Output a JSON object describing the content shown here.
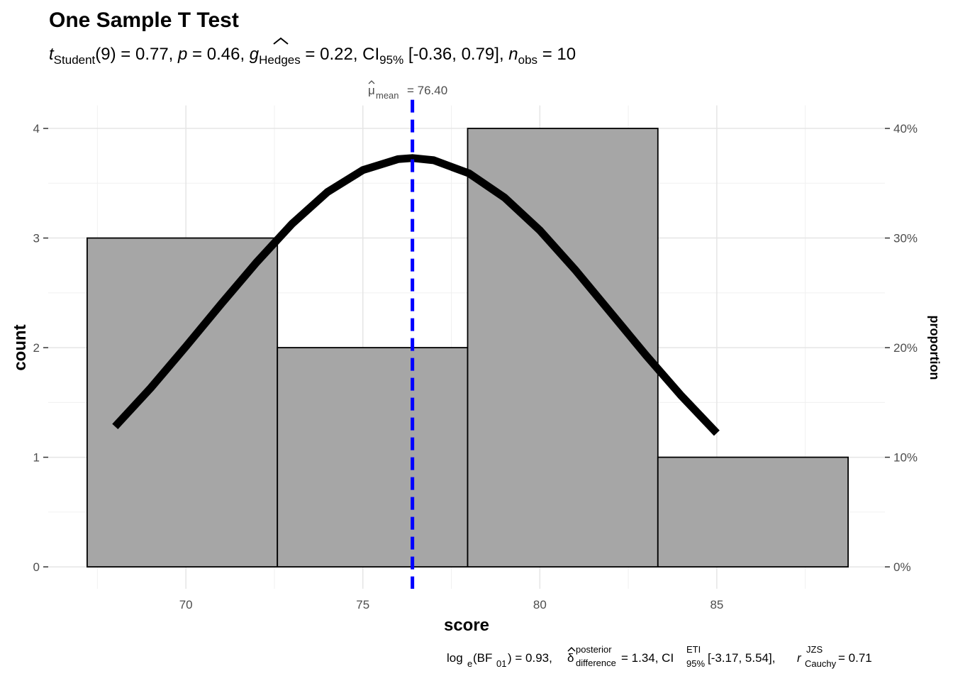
{
  "chart_data": {
    "type": "histogram",
    "title": "One Sample T Test",
    "subtitle": [
      "t",
      "Student",
      "(9) = 0.77, ",
      "p",
      " = 0.46, ",
      "g",
      "Hedges",
      " = 0.22, CI",
      "95%",
      " [-0.36, 0.79], ",
      "n",
      "obs",
      " = 10"
    ],
    "caption": [
      "log",
      "e",
      "(BF",
      "01",
      ") = 0.93, ",
      "δ",
      "posterior",
      "difference",
      " = 1.34, CI",
      "ETI",
      "95%",
      " [-3.17, 5.54], ",
      "r",
      "JZS",
      "Cauchy",
      " = 0.71"
    ],
    "xlabel": "score",
    "ylabel": "count",
    "y2label": "proportion",
    "bins": [
      67.21,
      72.585,
      77.96,
      83.335,
      88.71
    ],
    "values": [
      3,
      2,
      4,
      1
    ],
    "color": "#a6a6a6",
    "curve": {
      "color": "#000000",
      "x": [
        68,
        69,
        70,
        71,
        72,
        73,
        74,
        75,
        76,
        76.4,
        77,
        78,
        79,
        80,
        81,
        82,
        83,
        84,
        85
      ],
      "values": [
        1.28,
        1.63,
        2.01,
        2.4,
        2.78,
        3.13,
        3.42,
        3.62,
        3.72,
        3.73,
        3.71,
        3.59,
        3.37,
        3.07,
        2.71,
        2.32,
        1.93,
        1.56,
        1.22
      ]
    },
    "mean": 76.4,
    "mean_color": "#0000ff",
    "mean_label": [
      "μ",
      "mean",
      "= 76.40"
    ],
    "xlim": [
      66.11,
      89.75
    ],
    "xticks": [
      70,
      75,
      80,
      85
    ],
    "xminorticks": [
      67.5,
      72.5,
      77.5,
      82.5,
      87.5
    ],
    "ylim": [
      -0.2,
      4.21
    ],
    "yticks": [
      0,
      1,
      2,
      3,
      4
    ],
    "yminorticks": [
      0.5,
      1.5,
      2.5,
      3.5
    ],
    "y2lim": [
      -2,
      42.1
    ],
    "y2ticks": [
      {
        "value": 0,
        "label": "0%"
      },
      {
        "value": 10,
        "label": "10%"
      },
      {
        "value": 20,
        "label": "20%"
      },
      {
        "value": 30,
        "label": "30%"
      },
      {
        "value": 40,
        "label": "40%"
      }
    ],
    "grid": true
  }
}
